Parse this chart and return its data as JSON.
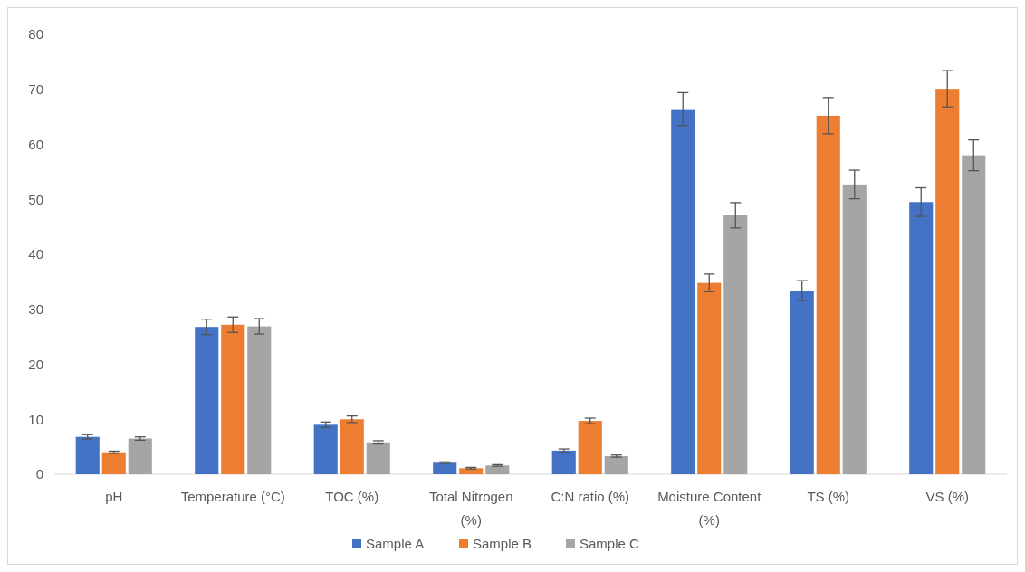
{
  "chart_data": {
    "type": "bar",
    "categories": [
      "pH",
      "Temperature (°C)",
      "TOC (%)",
      "Total Nitrogen (%)",
      "C:N ratio (%)",
      "Moisture Content (%)",
      "TS (%)",
      "VS (%)"
    ],
    "series": [
      {
        "name": "Sample A",
        "color": "#4472c4",
        "values": [
          6.8,
          26.8,
          9,
          2.1,
          4.3,
          66.4,
          33.4,
          49.5
        ],
        "errors": [
          0.4,
          1.4,
          0.5,
          0.15,
          0.3,
          3,
          1.8,
          2.6
        ]
      },
      {
        "name": "Sample B",
        "color": "#ed7d31",
        "values": [
          4,
          27.2,
          10,
          1.1,
          9.7,
          34.8,
          65.2,
          70.1
        ],
        "errors": [
          0.2,
          1.4,
          0.6,
          0.15,
          0.5,
          1.6,
          3.3,
          3.3
        ]
      },
      {
        "name": "Sample C",
        "color": "#a5a5a5",
        "values": [
          6.5,
          26.9,
          5.8,
          1.6,
          3.3,
          47.1,
          52.7,
          58
        ],
        "errors": [
          0.3,
          1.4,
          0.3,
          0.15,
          0.2,
          2.3,
          2.6,
          2.8
        ]
      }
    ],
    "ylim": [
      0,
      80
    ],
    "yticks": [
      0,
      10,
      20,
      30,
      40,
      50,
      60,
      70,
      80
    ],
    "grid": false,
    "legend": "bottom"
  }
}
